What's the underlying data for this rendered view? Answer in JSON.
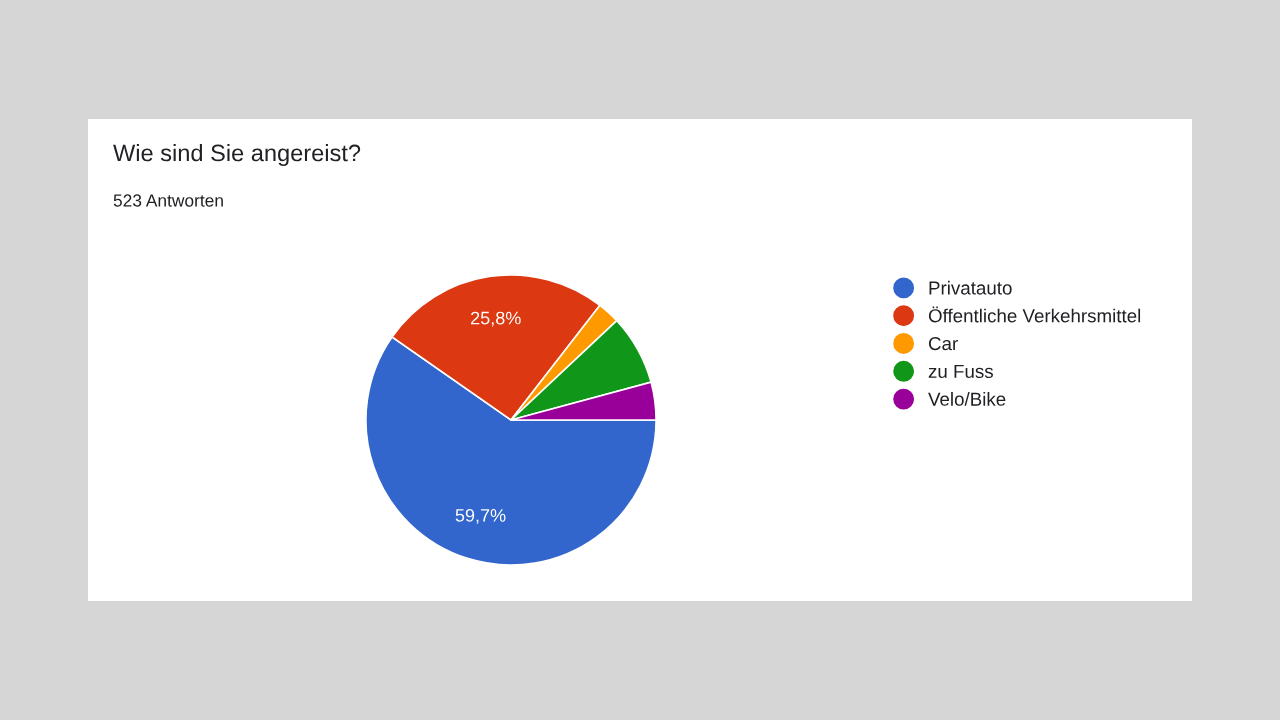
{
  "chart_data": {
    "type": "pie",
    "title": "Wie sind Sie angereist?",
    "subtitle": "523 Antworten",
    "categories": [
      "Privatauto",
      "Öffentliche Verkehrsmittel",
      "Car",
      "zu Fuss",
      "Velo/Bike"
    ],
    "values": [
      59.7,
      25.8,
      2.5,
      7.8,
      4.2
    ],
    "colors": [
      "#3366cc",
      "#dc3912",
      "#ff9900",
      "#109618",
      "#990099"
    ],
    "value_labels": [
      "59,7%",
      "25,8%",
      null,
      null,
      null
    ],
    "legend": "right"
  }
}
